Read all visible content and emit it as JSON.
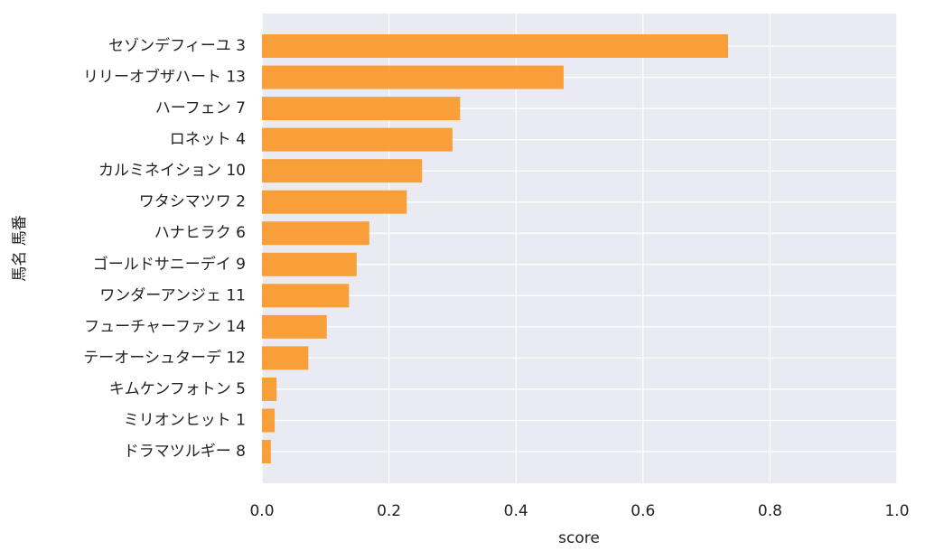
{
  "chart_data": {
    "type": "barh",
    "categories": [
      "セゾンデフィーユ 3",
      "リリーオブザハート 13",
      "ハーフェン 7",
      "ロネット 4",
      "カルミネイション 10",
      "ワタシマツワ 2",
      "ハナヒラク 6",
      "ゴールドサニーデイ 9",
      "ワンダーアンジェ 11",
      "フューチャーファン 14",
      "テーオーシュターデ 12",
      "キムケンフォトン 5",
      "ミリオンヒット 1",
      "ドラマツルギー 8"
    ],
    "values": [
      0.734,
      0.475,
      0.312,
      0.3,
      0.252,
      0.228,
      0.169,
      0.149,
      0.137,
      0.102,
      0.073,
      0.023,
      0.02,
      0.014
    ],
    "color": "#f99b2f",
    "xlabel": "score",
    "ylabel": "馬名 馬番",
    "xlim": [
      0,
      1
    ],
    "xticks": [
      {
        "value": 0,
        "label": "0.0"
      },
      0.2,
      0.4,
      0.6,
      0.8,
      {
        "value": 1,
        "label": "1.0"
      }
    ],
    "grid": true
  }
}
